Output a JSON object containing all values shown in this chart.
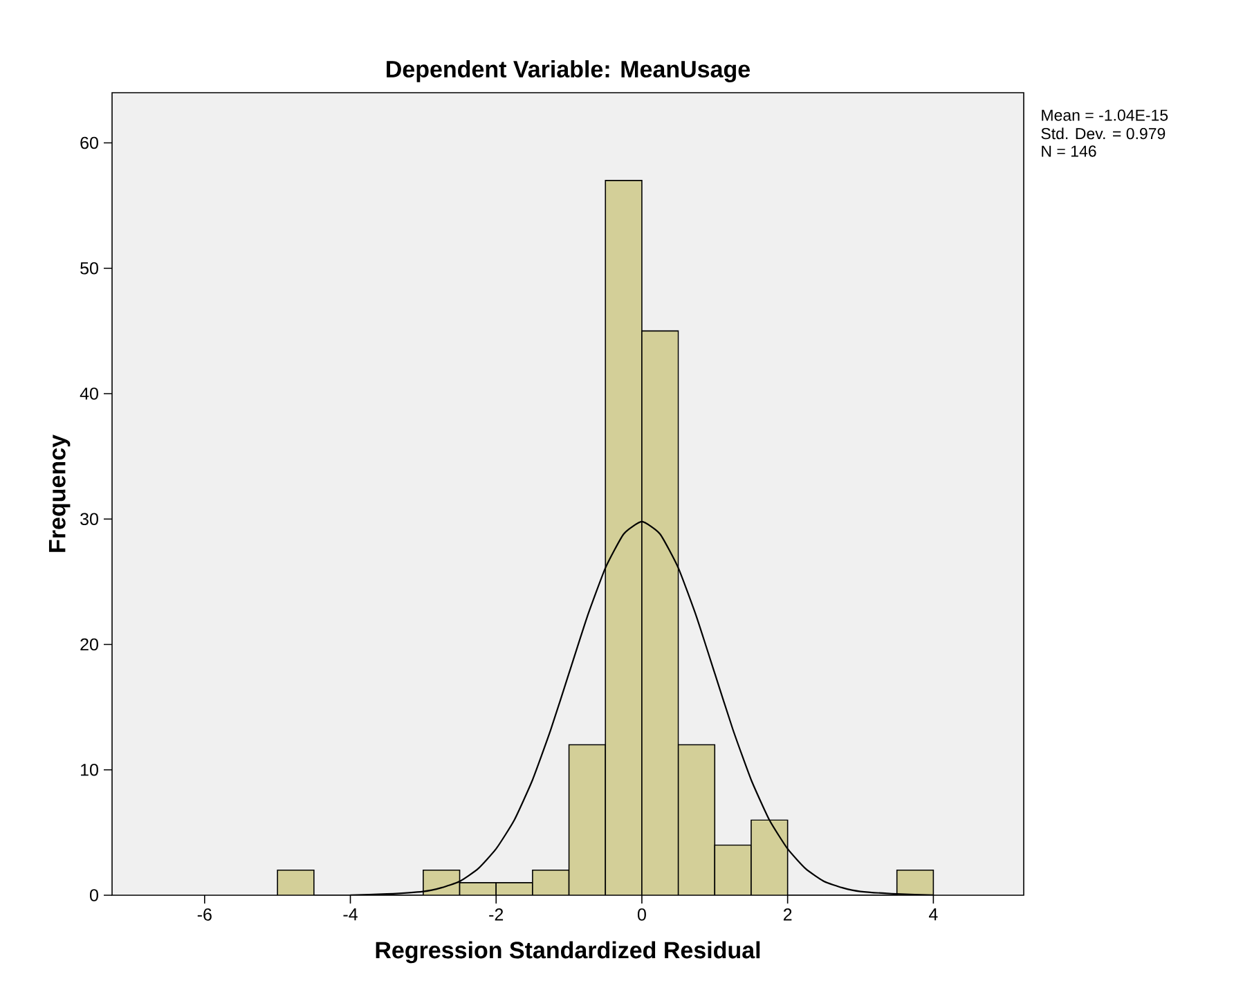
{
  "chart_data": {
    "type": "histogram",
    "title": "Dependent Variable: MeanUsage",
    "xlabel": "Regression Standardized Residual",
    "ylabel": "Frequency",
    "bins": [
      -5,
      -4.5,
      -4,
      -3.5,
      -3,
      -2.5,
      -2,
      -1.5,
      -1,
      -0.5,
      0,
      0.5,
      1,
      1.5,
      2,
      2.5,
      3,
      3.5,
      4
    ],
    "values": [
      2,
      0,
      0,
      0,
      2,
      1,
      1,
      2,
      12,
      57,
      45,
      12,
      4,
      6,
      0,
      0,
      0,
      2
    ],
    "color": "#d3cf98",
    "series": [
      {
        "type": "line",
        "color": "#000000",
        "x": [
          -4,
          -3.5,
          -3,
          -2.75,
          -2.5,
          -2.25,
          -2,
          -1.75,
          -1.5,
          -1.25,
          -1,
          -0.75,
          -0.5,
          -0.25,
          0,
          0.25,
          0.5,
          0.75,
          1,
          1.25,
          1.5,
          1.75,
          2,
          2.25,
          2.5,
          2.75,
          3,
          3.5,
          4
        ],
        "values": [
          0,
          0.1,
          0.3,
          0.6,
          1.1,
          2.1,
          3.7,
          6.0,
          9.2,
          13.2,
          17.7,
          22.2,
          26.1,
          28.8,
          29.8,
          28.8,
          26.1,
          22.2,
          17.7,
          13.2,
          9.2,
          6.0,
          3.7,
          2.1,
          1.1,
          0.6,
          0.3,
          0.1,
          0
        ]
      }
    ],
    "xlim": [
      -7.27,
      5.24
    ],
    "ylim": [
      0,
      64
    ],
    "xticks": [
      -6,
      -4,
      -2,
      0,
      2,
      4
    ],
    "yticks": [
      0,
      10,
      20,
      30,
      40,
      50,
      60
    ],
    "annotations": [
      "Mean = -1.04E-15",
      "Std. Dev. = 0.979",
      "N = 146"
    ],
    "grid": false
  }
}
